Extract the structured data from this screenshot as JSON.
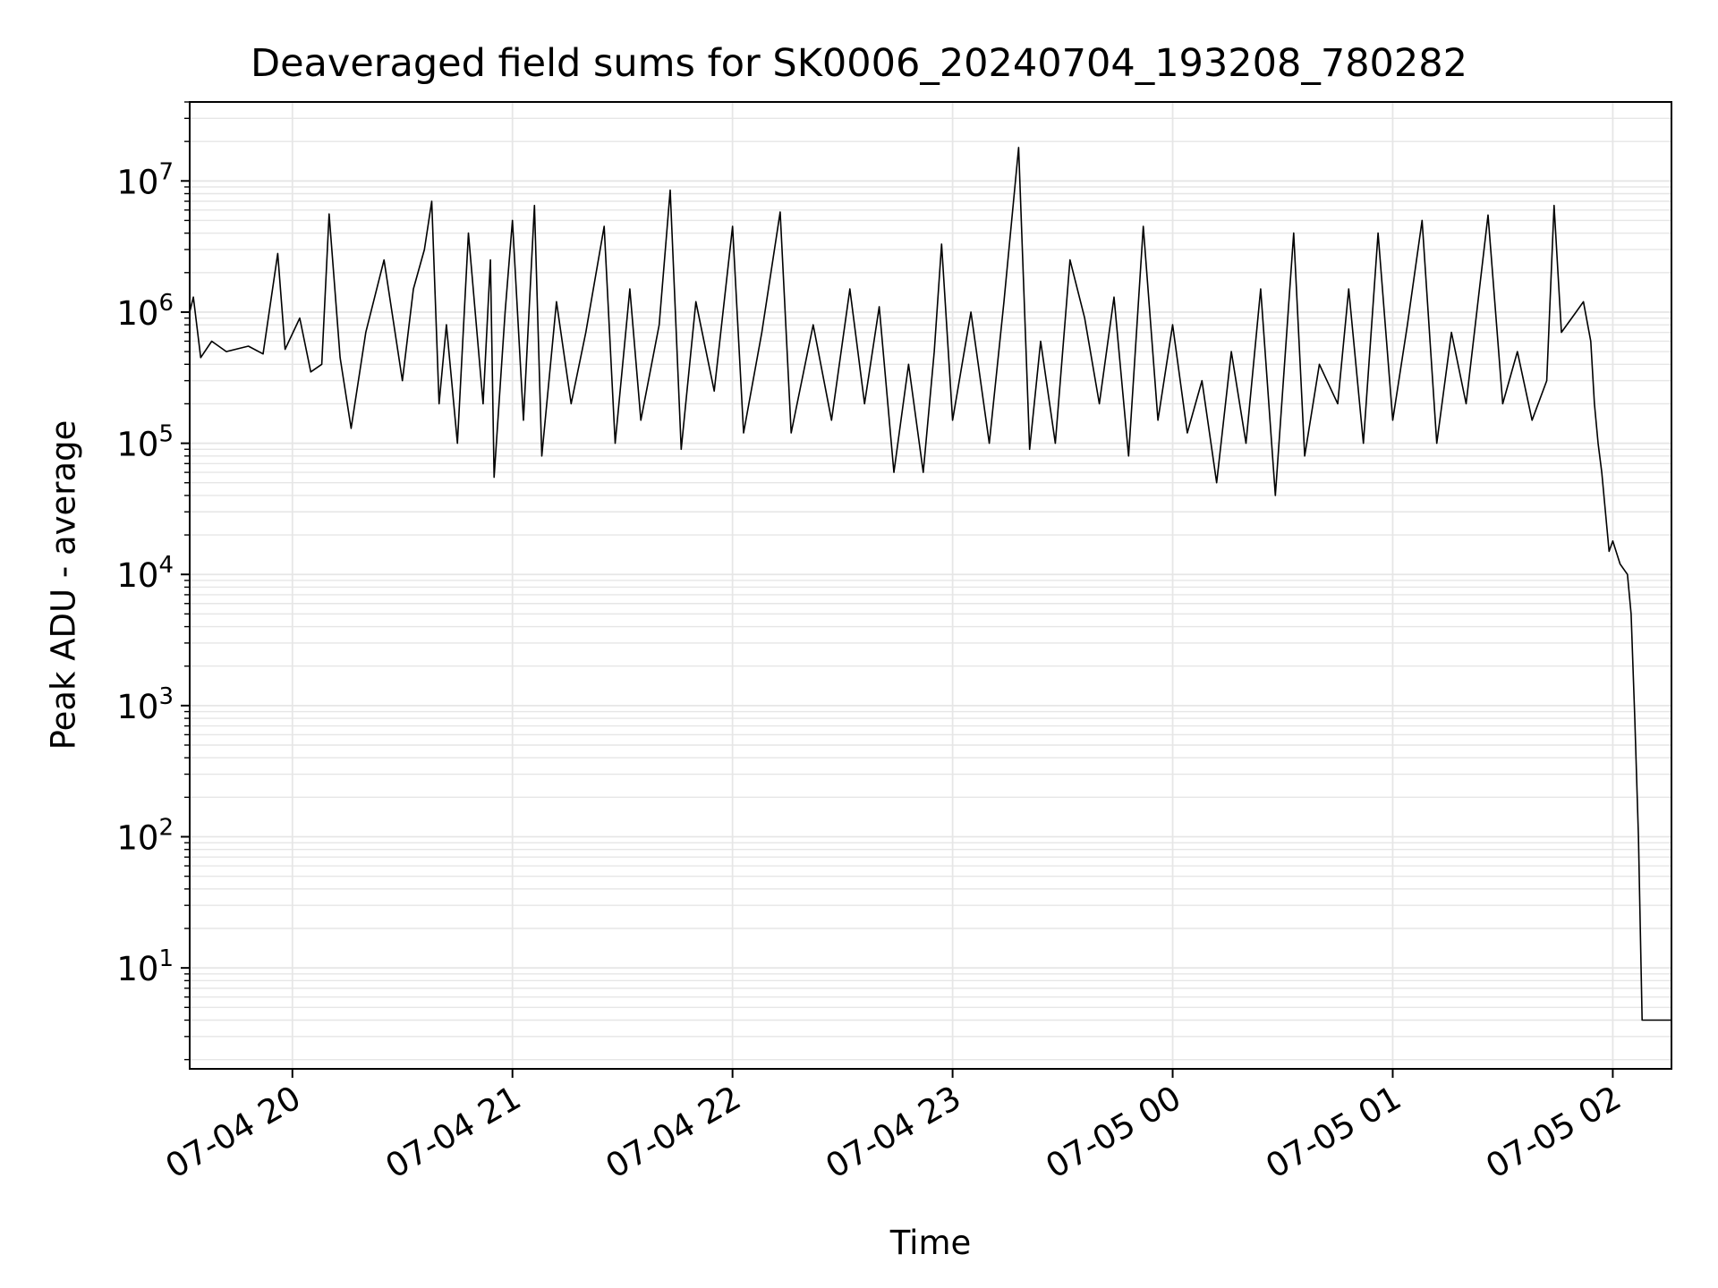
{
  "chart_data": {
    "type": "line",
    "title": "Deaveraged field sums for SK0006_20240704_193208_780282",
    "xlabel": "Time",
    "ylabel": "Peak ADU - average",
    "y_scale": "log",
    "ylim": [
      1.7,
      40000000
    ],
    "xlim": [
      "07-04 19:32",
      "07-05 02:16"
    ],
    "x_ticks": [
      "07-04 20",
      "07-04 21",
      "07-04 22",
      "07-04 23",
      "07-05 00",
      "07-05 01",
      "07-05 02"
    ],
    "y_ticks": [
      {
        "base": "10",
        "exp": "1",
        "value": 10
      },
      {
        "base": "10",
        "exp": "2",
        "value": 100
      },
      {
        "base": "10",
        "exp": "3",
        "value": 1000
      },
      {
        "base": "10",
        "exp": "4",
        "value": 10000
      },
      {
        "base": "10",
        "exp": "5",
        "value": 100000
      },
      {
        "base": "10",
        "exp": "6",
        "value": 1000000
      },
      {
        "base": "10",
        "exp": "7",
        "value": 10000000
      }
    ],
    "grid": true,
    "series": [
      {
        "color": "#000000",
        "points": [
          [
            "07-04 19:32",
            1000000
          ],
          [
            "07-04 19:33",
            1300000
          ],
          [
            "07-04 19:35",
            450000
          ],
          [
            "07-04 19:38",
            600000
          ],
          [
            "07-04 19:42",
            500000
          ],
          [
            "07-04 19:48",
            550000
          ],
          [
            "07-04 19:52",
            480000
          ],
          [
            "07-04 19:56",
            2800000
          ],
          [
            "07-04 19:58",
            520000
          ],
          [
            "07-04 20:02",
            900000
          ],
          [
            "07-04 20:05",
            350000
          ],
          [
            "07-04 20:08",
            400000
          ],
          [
            "07-04 20:10",
            5600000
          ],
          [
            "07-04 20:13",
            450000
          ],
          [
            "07-04 20:16",
            130000
          ],
          [
            "07-04 20:20",
            700000
          ],
          [
            "07-04 20:25",
            2500000
          ],
          [
            "07-04 20:30",
            300000
          ],
          [
            "07-04 20:33",
            1500000
          ],
          [
            "07-04 20:36",
            3000000
          ],
          [
            "07-04 20:38",
            7000000
          ],
          [
            "07-04 20:40",
            200000
          ],
          [
            "07-04 20:42",
            800000
          ],
          [
            "07-04 20:45",
            100000
          ],
          [
            "07-04 20:48",
            4000000
          ],
          [
            "07-04 20:52",
            200000
          ],
          [
            "07-04 20:54",
            2500000
          ],
          [
            "07-04 20:55",
            55000
          ],
          [
            "07-04 20:58",
            1000000
          ],
          [
            "07-04 21:00",
            5000000
          ],
          [
            "07-04 21:03",
            150000
          ],
          [
            "07-04 21:06",
            6500000
          ],
          [
            "07-04 21:08",
            80000
          ],
          [
            "07-04 21:12",
            1200000
          ],
          [
            "07-04 21:16",
            200000
          ],
          [
            "07-04 21:20",
            700000
          ],
          [
            "07-04 21:25",
            4500000
          ],
          [
            "07-04 21:28",
            100000
          ],
          [
            "07-04 21:32",
            1500000
          ],
          [
            "07-04 21:35",
            150000
          ],
          [
            "07-04 21:40",
            800000
          ],
          [
            "07-04 21:43",
            8500000
          ],
          [
            "07-04 21:46",
            90000
          ],
          [
            "07-04 21:50",
            1200000
          ],
          [
            "07-04 21:55",
            250000
          ],
          [
            "07-04 22:00",
            4500000
          ],
          [
            "07-04 22:03",
            120000
          ],
          [
            "07-04 22:08",
            700000
          ],
          [
            "07-04 22:13",
            5800000
          ],
          [
            "07-04 22:16",
            120000
          ],
          [
            "07-04 22:22",
            800000
          ],
          [
            "07-04 22:27",
            150000
          ],
          [
            "07-04 22:32",
            1500000
          ],
          [
            "07-04 22:36",
            200000
          ],
          [
            "07-04 22:40",
            1100000
          ],
          [
            "07-04 22:44",
            60000
          ],
          [
            "07-04 22:48",
            400000
          ],
          [
            "07-04 22:52",
            60000
          ],
          [
            "07-04 22:55",
            500000
          ],
          [
            "07-04 22:57",
            3300000
          ],
          [
            "07-04 23:00",
            150000
          ],
          [
            "07-04 23:05",
            1000000
          ],
          [
            "07-04 23:10",
            100000
          ],
          [
            "07-04 23:14",
            1200000
          ],
          [
            "07-04 23:18",
            18000000
          ],
          [
            "07-04 23:21",
            90000
          ],
          [
            "07-04 23:24",
            600000
          ],
          [
            "07-04 23:28",
            100000
          ],
          [
            "07-04 23:32",
            2500000
          ],
          [
            "07-04 23:36",
            900000
          ],
          [
            "07-04 23:40",
            200000
          ],
          [
            "07-04 23:44",
            1300000
          ],
          [
            "07-04 23:48",
            80000
          ],
          [
            "07-04 23:52",
            4500000
          ],
          [
            "07-04 23:56",
            150000
          ],
          [
            "07-05 00:00",
            800000
          ],
          [
            "07-05 00:04",
            120000
          ],
          [
            "07-05 00:08",
            300000
          ],
          [
            "07-05 00:12",
            50000
          ],
          [
            "07-05 00:16",
            500000
          ],
          [
            "07-05 00:20",
            100000
          ],
          [
            "07-05 00:24",
            1500000
          ],
          [
            "07-05 00:28",
            40000
          ],
          [
            "07-05 00:33",
            4000000
          ],
          [
            "07-05 00:36",
            80000
          ],
          [
            "07-05 00:40",
            400000
          ],
          [
            "07-05 00:45",
            200000
          ],
          [
            "07-05 00:48",
            1500000
          ],
          [
            "07-05 00:52",
            100000
          ],
          [
            "07-05 00:56",
            4000000
          ],
          [
            "07-05 01:00",
            150000
          ],
          [
            "07-05 01:04",
            800000
          ],
          [
            "07-05 01:08",
            5000000
          ],
          [
            "07-05 01:12",
            100000
          ],
          [
            "07-05 01:16",
            700000
          ],
          [
            "07-05 01:20",
            200000
          ],
          [
            "07-05 01:26",
            5500000
          ],
          [
            "07-05 01:30",
            200000
          ],
          [
            "07-05 01:34",
            500000
          ],
          [
            "07-05 01:38",
            150000
          ],
          [
            "07-05 01:42",
            300000
          ],
          [
            "07-05 01:44",
            6500000
          ],
          [
            "07-05 01:46",
            700000
          ],
          [
            "07-05 01:50",
            1000000
          ],
          [
            "07-05 01:52",
            1200000
          ],
          [
            "07-05 01:54",
            600000
          ],
          [
            "07-05 01:55",
            200000
          ],
          [
            "07-05 01:56",
            100000
          ],
          [
            "07-05 01:57",
            60000
          ],
          [
            "07-05 01:58",
            30000
          ],
          [
            "07-05 01:59",
            15000
          ],
          [
            "07-05 02:00",
            18000
          ],
          [
            "07-05 02:02",
            12000
          ],
          [
            "07-05 02:04",
            10000
          ],
          [
            "07-05 02:05",
            5000
          ],
          [
            "07-05 02:06",
            800
          ],
          [
            "07-05 02:07",
            100
          ],
          [
            "07-05 02:08",
            4
          ],
          [
            "07-05 02:16",
            4
          ]
        ]
      }
    ]
  }
}
